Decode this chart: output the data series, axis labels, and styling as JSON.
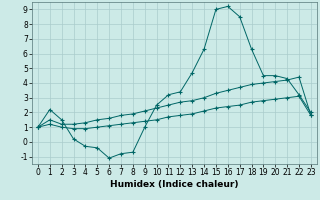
{
  "title": "",
  "xlabel": "Humidex (Indice chaleur)",
  "background_color": "#cceae7",
  "grid_color": "#aacccc",
  "line_color": "#006666",
  "xlim": [
    -0.5,
    23.5
  ],
  "ylim": [
    -1.5,
    9.5
  ],
  "xticks": [
    0,
    1,
    2,
    3,
    4,
    5,
    6,
    7,
    8,
    9,
    10,
    11,
    12,
    13,
    14,
    15,
    16,
    17,
    18,
    19,
    20,
    21,
    22,
    23
  ],
  "yticks": [
    -1,
    0,
    1,
    2,
    3,
    4,
    5,
    6,
    7,
    8,
    9
  ],
  "line1_x": [
    0,
    1,
    2,
    3,
    4,
    5,
    6,
    7,
    8,
    9,
    10,
    11,
    12,
    13,
    14,
    15,
    16,
    17,
    18,
    19,
    20,
    21,
    22,
    23
  ],
  "line1_y": [
    1.0,
    2.2,
    1.5,
    0.2,
    -0.3,
    -0.4,
    -1.1,
    -0.8,
    -0.7,
    1.0,
    2.5,
    3.2,
    3.4,
    4.7,
    6.3,
    9.0,
    9.2,
    8.5,
    6.3,
    4.5,
    4.5,
    4.3,
    3.2,
    2.0
  ],
  "line2_x": [
    0,
    1,
    2,
    3,
    4,
    5,
    6,
    7,
    8,
    9,
    10,
    11,
    12,
    13,
    14,
    15,
    16,
    17,
    18,
    19,
    20,
    21,
    22,
    23
  ],
  "line2_y": [
    1.0,
    1.5,
    1.2,
    1.2,
    1.3,
    1.5,
    1.6,
    1.8,
    1.9,
    2.1,
    2.3,
    2.5,
    2.7,
    2.8,
    3.0,
    3.3,
    3.5,
    3.7,
    3.9,
    4.0,
    4.1,
    4.2,
    4.4,
    1.8
  ],
  "line3_x": [
    0,
    1,
    2,
    3,
    4,
    5,
    6,
    7,
    8,
    9,
    10,
    11,
    12,
    13,
    14,
    15,
    16,
    17,
    18,
    19,
    20,
    21,
    22,
    23
  ],
  "line3_y": [
    1.0,
    1.2,
    1.0,
    0.9,
    0.9,
    1.0,
    1.1,
    1.2,
    1.3,
    1.4,
    1.5,
    1.7,
    1.8,
    1.9,
    2.1,
    2.3,
    2.4,
    2.5,
    2.7,
    2.8,
    2.9,
    3.0,
    3.1,
    1.8
  ],
  "tick_fontsize": 5.5,
  "xlabel_fontsize": 6.5
}
